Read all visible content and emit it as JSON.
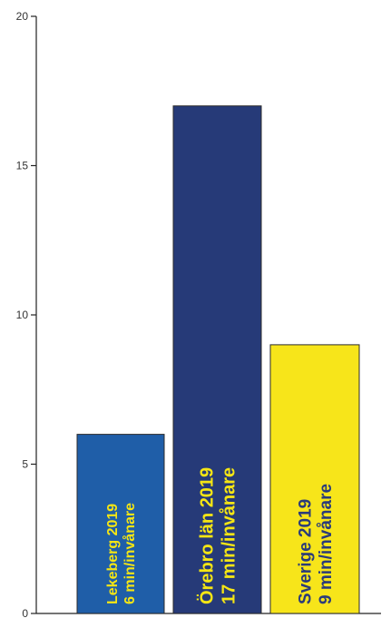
{
  "chart_data": {
    "type": "bar",
    "title": "",
    "xlabel": "",
    "ylabel": "",
    "ylim": [
      0,
      20
    ],
    "yticks": [
      0,
      5,
      10,
      15,
      20
    ],
    "grid": false,
    "bars": [
      {
        "label_line1": "Lekeberg 2019",
        "label_line2": "6 min/invånare",
        "value": 6,
        "color": "#1f5ea8",
        "text_color": "#f5e614"
      },
      {
        "label_line1": "Örebro län 2019",
        "label_line2": "17 min/invånare",
        "value": 17,
        "color": "#263a78",
        "text_color": "#f5e614"
      },
      {
        "label_line1": "Sverige  2019",
        "label_line2": "9 min/invånare",
        "value": 9,
        "color": "#f7e51a",
        "text_color": "#2a3b7a"
      }
    ]
  }
}
